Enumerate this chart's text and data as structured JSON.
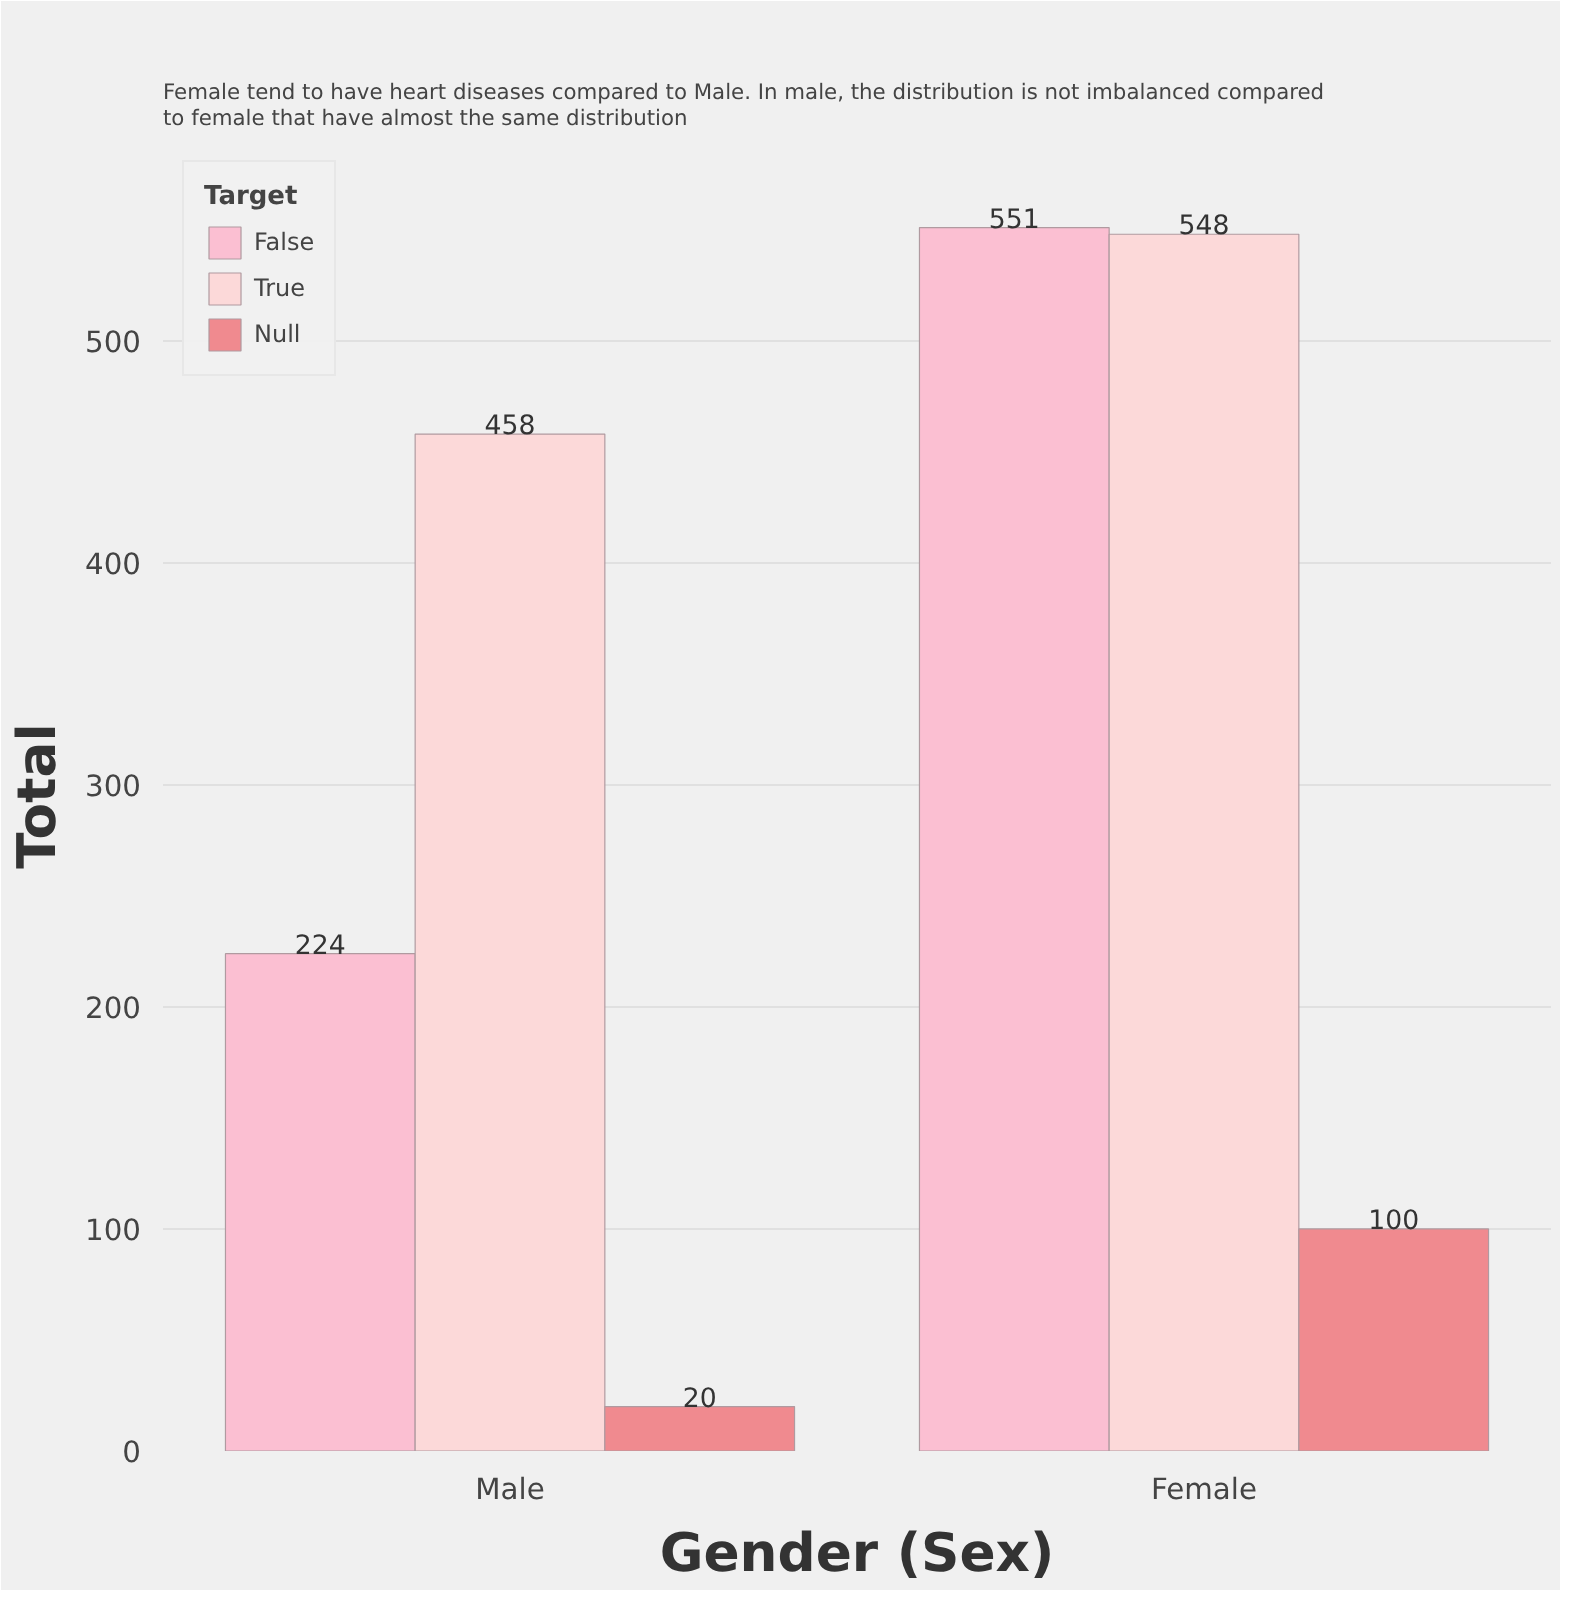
{
  "chart_data": {
    "type": "bar",
    "title": "Female tend to have heart diseases compared to Male. In male, the distribution is not imbalanced compared to female that have almost the same distribution",
    "xlabel": "Gender (Sex)",
    "ylabel": "Total",
    "legend_title": "Target",
    "categories": [
      "Male",
      "Female"
    ],
    "series": [
      {
        "name": "False",
        "color": "#fbbfd2",
        "values": [
          224,
          551
        ]
      },
      {
        "name": "True",
        "color": "#fcd9d9",
        "values": [
          458,
          548
        ]
      },
      {
        "name": "Null",
        "color": "#f08a8f",
        "values": [
          20,
          100
        ]
      }
    ],
    "ylim": [
      0,
      590
    ],
    "yticks": [
      0,
      100,
      200,
      300,
      400,
      500
    ],
    "grid": "y",
    "legend": "top left",
    "data_labels": true
  }
}
